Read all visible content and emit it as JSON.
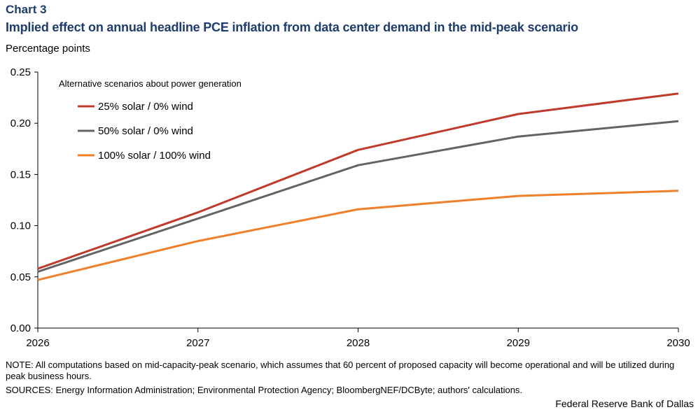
{
  "header": {
    "chart_label": "Chart 3",
    "title": "Implied effect on annual headline PCE inflation from data center demand in the mid-peak scenario",
    "unit_label": "Percentage points"
  },
  "footer": {
    "note": "NOTE: All computations based on mid-capacity-peak scenario, which assumes that 60 percent of proposed capacity will become operational and will be utilized during peak business hours.",
    "sources": "SOURCES: Energy Information Administration; Environmental Protection Agency; BloombergNEF/DCByte; authors' calculations.",
    "credit": "Federal Reserve Bank of Dallas"
  },
  "chart_data": {
    "type": "line",
    "title": "Implied effect on annual headline PCE inflation from data center demand in the mid-peak scenario",
    "xlabel": "",
    "ylabel": "Percentage points",
    "x": [
      2026,
      2027,
      2028,
      2029,
      2030
    ],
    "x_tick_labels": [
      "2026",
      "2027",
      "2028",
      "2029",
      "2030"
    ],
    "y_ticks": [
      "0.00",
      "0.05",
      "0.10",
      "0.15",
      "0.20",
      "0.25"
    ],
    "ylim": [
      0,
      0.25
    ],
    "grid": false,
    "legend_title": "Alternative scenarios about power generation",
    "legend_position": "top-left",
    "series": [
      {
        "name": "25% solar / 0% wind",
        "color": "#c0392b",
        "values": [
          0.058,
          0.113,
          0.174,
          0.209,
          0.229
        ]
      },
      {
        "name": "50% solar / 0% wind",
        "color": "#636363",
        "values": [
          0.055,
          0.107,
          0.159,
          0.187,
          0.202
        ]
      },
      {
        "name": "100% solar / 100% wind",
        "color": "#f07f2a",
        "values": [
          0.047,
          0.085,
          0.116,
          0.129,
          0.134
        ]
      }
    ]
  }
}
